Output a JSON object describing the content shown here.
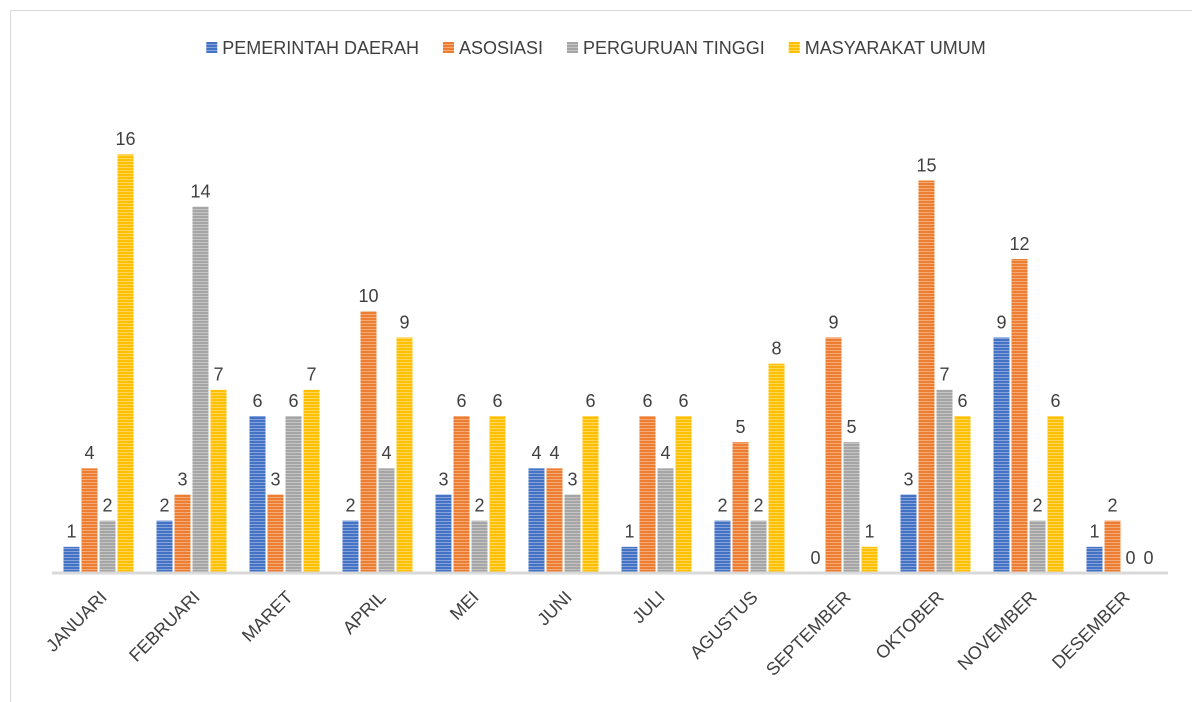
{
  "chart_data": {
    "type": "bar",
    "categories": [
      "JANUARI",
      "FEBRUARI",
      "MARET",
      "APRIL",
      "MEI",
      "JUNI",
      "JULI",
      "AGUSTUS",
      "SEPTEMBER",
      "OKTOBER",
      "NOVEMBER",
      "DESEMBER"
    ],
    "series": [
      {
        "name": "PEMERINTAH DAERAH",
        "color": "#4472c4",
        "values": [
          1,
          2,
          6,
          2,
          3,
          4,
          1,
          2,
          0,
          3,
          9,
          1
        ]
      },
      {
        "name": "ASOSIASI",
        "color": "#ed7d31",
        "values": [
          4,
          3,
          3,
          10,
          6,
          4,
          6,
          5,
          9,
          15,
          12,
          2
        ]
      },
      {
        "name": "PERGURUAN TINGGI",
        "color": "#a5a5a5",
        "values": [
          2,
          14,
          6,
          4,
          2,
          3,
          4,
          2,
          5,
          7,
          2,
          0
        ]
      },
      {
        "name": "MASYARAKAT UMUM",
        "color": "#ffc000",
        "values": [
          16,
          7,
          7,
          9,
          6,
          6,
          6,
          8,
          1,
          6,
          6,
          0
        ]
      }
    ],
    "ylim": [
      0,
      18
    ],
    "legend": "top"
  }
}
